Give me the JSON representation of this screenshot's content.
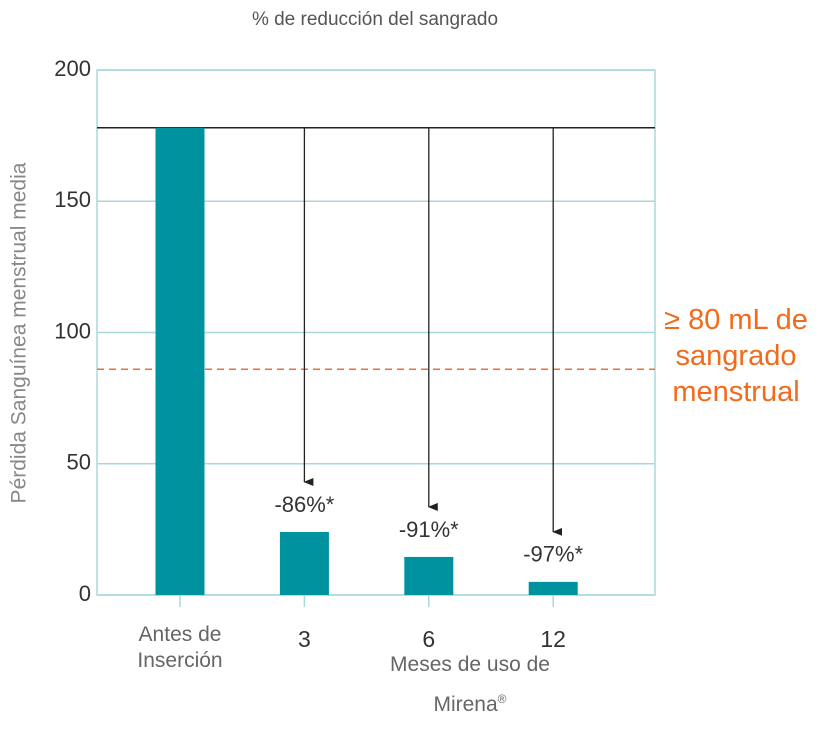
{
  "chart_data": {
    "type": "bar",
    "title": "% de reducción del sangrado",
    "y_label": "Pérdida Sanguínea menstrual media",
    "x_label": "Meses de uso de Mirena",
    "x_label_mark": "®",
    "categories": [
      "Antes de Inserción",
      "3",
      "6",
      "12"
    ],
    "values": [
      178,
      24,
      14.5,
      5
    ],
    "reduction_labels": [
      null,
      "-86%*",
      "-91%*",
      "-97%*"
    ],
    "color": "#00929f",
    "threshold": 86,
    "threshold_color": "#f07030",
    "threshold_label": "≥ 80 mL de sangrado menstrual",
    "ylim": [
      0,
      200
    ],
    "yticks": [
      0,
      50,
      100,
      150,
      200
    ],
    "grid": true
  }
}
